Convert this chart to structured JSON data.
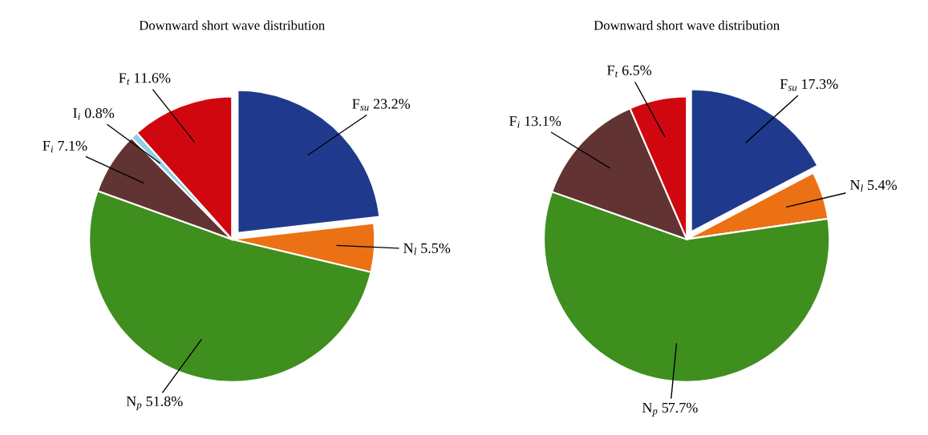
{
  "chart_data": [
    {
      "type": "pie",
      "title": "Downward short wave distribution",
      "categories": [
        "F$_{su}$",
        "N$_{l}$",
        "N$_{p}$",
        "F$_{i}$",
        "I$_{i}$",
        "F$_{t}$"
      ],
      "values": [
        23.2,
        5.5,
        51.8,
        7.1,
        0.8,
        11.6
      ],
      "value_labels": [
        "23.2%",
        "5.5%",
        "51.8%",
        "7.1%",
        "0.8%",
        "11.6%"
      ],
      "colors": [
        "#1f3a8c",
        "#ec7114",
        "#3f8f1f",
        "#623333",
        "#8ecfe6",
        "#d0070f"
      ]
    },
    {
      "type": "pie",
      "title": "Downward short wave distribution",
      "categories": [
        "F$_{su}$",
        "N$_{l}$",
        "N$_{p}$",
        "F$_{i}$",
        "F$_{t}$"
      ],
      "values": [
        17.3,
        5.4,
        57.7,
        13.1,
        6.5
      ],
      "value_labels": [
        "17.3%",
        "5.4%",
        "57.7%",
        "13.1%",
        "6.5%"
      ],
      "colors": [
        "#1f3a8c",
        "#ec7114",
        "#3f8f1f",
        "#623333",
        "#d0070f"
      ]
    }
  ]
}
